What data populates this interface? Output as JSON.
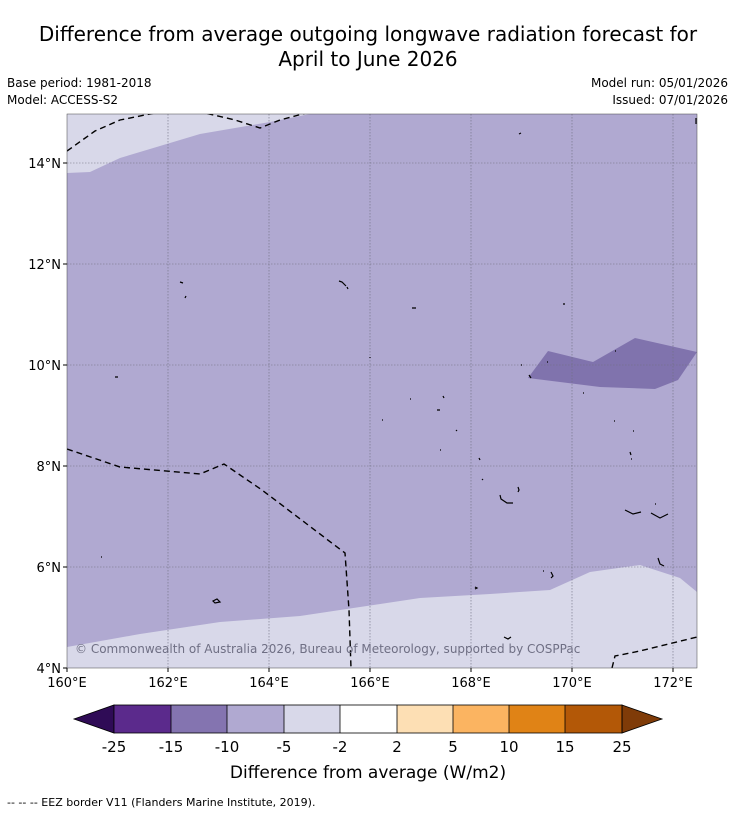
{
  "title": {
    "line1": "Difference from average outgoing longwave radiation forecast for",
    "line2": "April to June 2026"
  },
  "meta": {
    "base_period": "Base period: 1981-2018",
    "model": "Model: ACCESS-S2",
    "model_run": "Model run: 05/01/2026",
    "issued": "Issued: 07/01/2026"
  },
  "map": {
    "x_ticks": [
      "160°E",
      "162°E",
      "164°E",
      "166°E",
      "168°E",
      "170°E",
      "172°E"
    ],
    "y_ticks": [
      "14°N",
      "12°N",
      "10°N",
      "8°N",
      "6°N",
      "4°N"
    ],
    "copyright": "© Commonwealth of Australia 2026, Bureau of Meteorology, supported by COSPPac",
    "colors": {
      "band_minus5_minus2": "#d8d8e9",
      "band_minus10_minus5": "#b0a9d1",
      "band_minus15_minus10": "#8073ad"
    }
  },
  "colorbar": {
    "ticks": [
      "-25",
      "-15",
      "-10",
      "-5",
      "-2",
      "2",
      "5",
      "10",
      "15",
      "25"
    ],
    "colors": [
      "#2f0b56",
      "#5b2a8c",
      "#8474b0",
      "#b0a9d1",
      "#d8d8e9",
      "#ffffff",
      "#fddfb4",
      "#fbb461",
      "#e08316",
      "#b35807",
      "#7f3b08"
    ],
    "label": "Difference from average (W/m2)"
  },
  "footnote": "--  --  -- EEZ border V11 (Flanders Marine Institute, 2019)."
}
